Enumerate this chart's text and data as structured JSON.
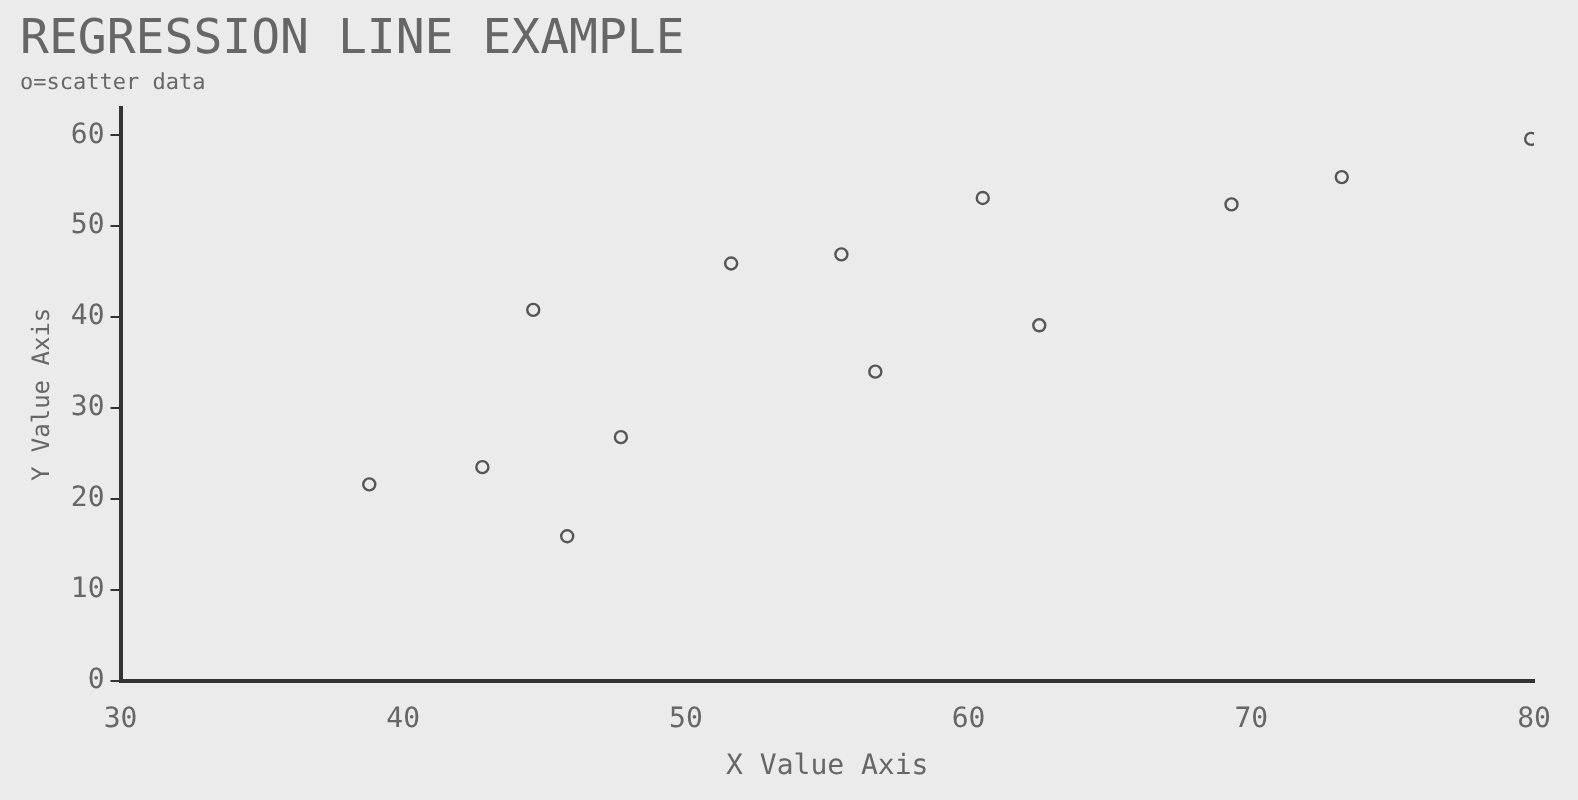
{
  "chart_data": {
    "type": "scatter",
    "title": "REGRESSION LINE EXAMPLE",
    "subtitle": "o=scatter data",
    "xlabel": "X Value Axis",
    "ylabel": "Y Value Axis",
    "x": [
      38.8,
      42.8,
      44.6,
      45.8,
      47.7,
      51.6,
      55.5,
      56.7,
      60.5,
      62.5,
      69.3,
      73.2,
      79.9
    ],
    "values": [
      21.6,
      23.5,
      40.8,
      15.9,
      26.8,
      45.9,
      46.9,
      34.0,
      53.1,
      39.1,
      52.4,
      55.4,
      59.6
    ],
    "color": "#555555",
    "marker": "circle",
    "grid": false,
    "legend": false,
    "xlim": [
      30,
      80
    ],
    "xticks": [
      30,
      40,
      50,
      60,
      70,
      80
    ],
    "ylim": [
      0,
      63
    ],
    "yticks": [
      0,
      10,
      20,
      30,
      40,
      50,
      60
    ]
  }
}
